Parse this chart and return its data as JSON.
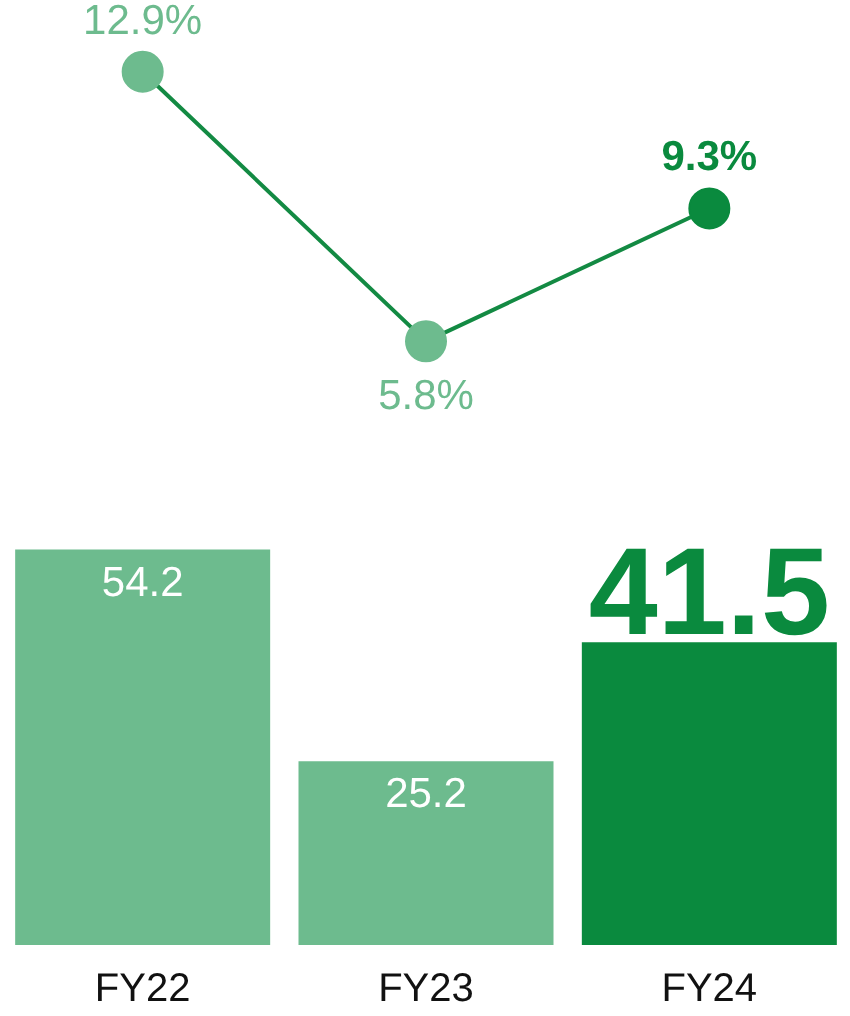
{
  "chart_data": [
    {
      "type": "line",
      "categories": [
        null,
        null,
        null
      ],
      "tick_labels": false,
      "marker": "circle",
      "line_style": "solid",
      "series": [
        {
          "color": "#138a43",
          "colors": [
            "#6dbb8e",
            "#6dbb8e",
            "#0a8a3e"
          ],
          "values": [
            12.9,
            5.8,
            9.3
          ],
          "value_labels": [
            "12.9%",
            "5.8%",
            "9.3%"
          ]
        }
      ]
    },
    {
      "type": "bar",
      "categories": [
        "FY22",
        "FY23",
        "FY24"
      ],
      "tick_labels": "x",
      "data_labels": true,
      "values": [
        54.2,
        25.2,
        41.5
      ],
      "colors": [
        "#6dbb8e",
        "#6dbb8e",
        "#0a8a3e"
      ]
    }
  ]
}
